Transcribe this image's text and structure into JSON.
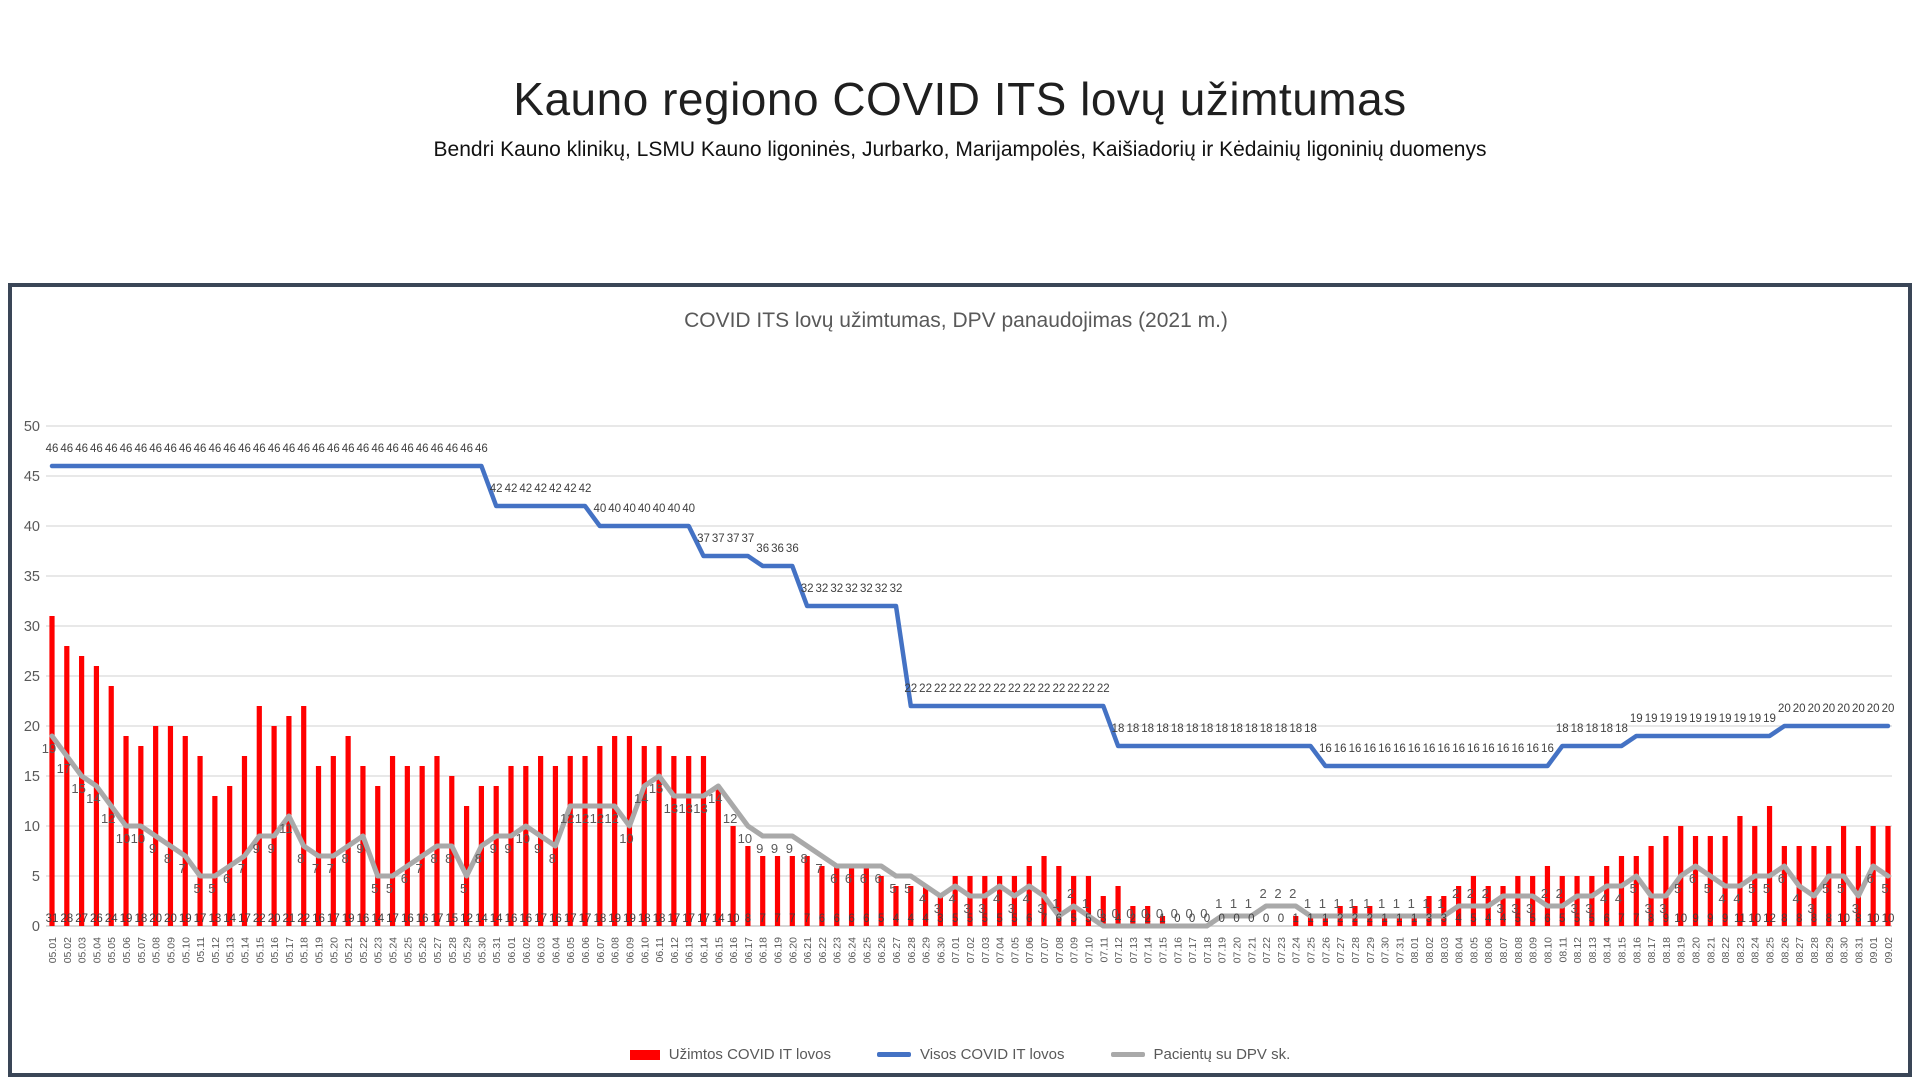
{
  "page": {
    "title": "Kauno regiono COVID ITS lovų užimtumas",
    "subtitle": "Bendri Kauno klinikų, LSMU Kauno ligoninės, Jurbarko, Marijampolės, Kaišiadorių ir Kėdainių ligoninių duomenys"
  },
  "chart_data": {
    "type": "combo",
    "title": "COVID ITS lovų užimtumas, DPV panaudojimas (2021 m.)",
    "xlabel": "",
    "ylabel": "",
    "ylim": [
      0,
      50
    ],
    "yticks": [
      0,
      5,
      10,
      15,
      20,
      25,
      30,
      35,
      40,
      45,
      50
    ],
    "grid": true,
    "data_labels": true,
    "legend_position": "bottom",
    "colors": {
      "bar": "#FF0000",
      "total_line": "#4472C4",
      "dpv_line": "#A9A9A9",
      "gridline": "#D9D9D9",
      "axis_text": "#595959",
      "frame": "#3A4657"
    },
    "categories": [
      "05.01",
      "05.02",
      "05.03",
      "05.04",
      "05.05",
      "05.06",
      "05.07",
      "05.08",
      "05.09",
      "05.10",
      "05.11",
      "05.12",
      "05.13",
      "05.14",
      "05.15",
      "05.16",
      "05.17",
      "05.18",
      "05.19",
      "05.20",
      "05.21",
      "05.22",
      "05.23",
      "05.24",
      "05.25",
      "05.26",
      "05.27",
      "05.28",
      "05.29",
      "05.30",
      "05.31",
      "06.01",
      "06.02",
      "06.03",
      "06.04",
      "06.05",
      "06.06",
      "06.07",
      "06.08",
      "06.09",
      "06.10",
      "06.11",
      "06.12",
      "06.13",
      "06.14",
      "06.15",
      "06.16",
      "06.17",
      "06.18",
      "06.19",
      "06.20",
      "06.21",
      "06.22",
      "06.23",
      "06.24",
      "06.25",
      "06.26",
      "06.27",
      "06.28",
      "06.29",
      "06.30",
      "07.01",
      "07.02",
      "07.03",
      "07.04",
      "07.05",
      "07.06",
      "07.07",
      "07.08",
      "07.09",
      "07.10",
      "07.11",
      "07.12",
      "07.13",
      "07.14",
      "07.15",
      "07.16",
      "07.17",
      "07.18",
      "07.19",
      "07.20",
      "07.21",
      "07.22",
      "07.23",
      "07.24",
      "07.25",
      "07.26",
      "07.27",
      "07.28",
      "07.29",
      "07.30",
      "07.31",
      "08.01",
      "08.02",
      "08.03",
      "08.04",
      "08.05",
      "08.06",
      "08.07",
      "08.08",
      "08.09",
      "08.10",
      "08.11",
      "08.12",
      "08.13",
      "08.14",
      "08.15",
      "08.16",
      "08.17",
      "08.18",
      "08.19",
      "08.20",
      "08.21",
      "08.22",
      "08.23",
      "08.24",
      "08.25",
      "08.26",
      "08.27",
      "08.28",
      "08.29",
      "08.30",
      "08.31",
      "09.01",
      "09.02"
    ],
    "series": [
      {
        "name": "Užimtos COVID IT lovos",
        "type": "bar",
        "color": "#FF0000",
        "values": [
          31,
          28,
          27,
          26,
          24,
          19,
          18,
          20,
          20,
          19,
          17,
          13,
          14,
          17,
          22,
          20,
          21,
          22,
          16,
          17,
          19,
          16,
          14,
          17,
          16,
          16,
          17,
          15,
          12,
          14,
          14,
          16,
          16,
          17,
          16,
          17,
          17,
          18,
          19,
          19,
          18,
          18,
          17,
          17,
          17,
          14,
          10,
          8,
          7,
          7,
          7,
          7,
          6,
          6,
          6,
          6,
          5,
          4,
          4,
          4,
          3,
          5,
          5,
          5,
          5,
          5,
          6,
          7,
          6,
          5,
          5,
          3,
          4,
          2,
          2,
          1,
          0,
          0,
          0,
          0,
          0,
          0,
          0,
          0,
          1,
          1,
          1,
          2,
          2,
          2,
          1,
          1,
          1,
          3,
          3,
          4,
          5,
          4,
          4,
          5,
          5,
          6,
          5,
          5,
          5,
          6,
          7,
          7,
          8,
          9,
          10,
          9,
          9,
          9,
          11,
          10,
          12,
          8,
          8,
          8,
          8,
          10,
          8,
          10,
          10
        ]
      },
      {
        "name": "Visos COVID IT lovos",
        "type": "line",
        "color": "#4472C4",
        "values": [
          46,
          46,
          46,
          46,
          46,
          46,
          46,
          46,
          46,
          46,
          46,
          46,
          46,
          46,
          46,
          46,
          46,
          46,
          46,
          46,
          46,
          46,
          46,
          46,
          46,
          46,
          46,
          46,
          46,
          46,
          42,
          42,
          42,
          42,
          42,
          42,
          42,
          40,
          40,
          40,
          40,
          40,
          40,
          40,
          37,
          37,
          37,
          37,
          36,
          36,
          36,
          32,
          32,
          32,
          32,
          32,
          32,
          32,
          22,
          22,
          22,
          22,
          22,
          22,
          22,
          22,
          22,
          22,
          22,
          22,
          22,
          22,
          18,
          18,
          18,
          18,
          18,
          18,
          18,
          18,
          18,
          18,
          18,
          18,
          18,
          18,
          16,
          16,
          16,
          16,
          16,
          16,
          16,
          16,
          16,
          16,
          16,
          16,
          16,
          16,
          16,
          16,
          18,
          18,
          18,
          18,
          18,
          19,
          19,
          19,
          19,
          19,
          19,
          19,
          19,
          19,
          19,
          20,
          20,
          20,
          20,
          20,
          20,
          20,
          20
        ]
      },
      {
        "name": "Pacientų su DPV sk.",
        "type": "line",
        "color": "#A9A9A9",
        "values": [
          19,
          17,
          15,
          14,
          12,
          10,
          10,
          9,
          8,
          7,
          5,
          5,
          6,
          7,
          9,
          9,
          11,
          8,
          7,
          7,
          8,
          9,
          5,
          5,
          6,
          7,
          8,
          8,
          5,
          8,
          9,
          9,
          10,
          9,
          8,
          12,
          12,
          12,
          12,
          10,
          14,
          15,
          13,
          13,
          13,
          14,
          12,
          10,
          9,
          9,
          9,
          8,
          7,
          6,
          6,
          6,
          6,
          5,
          5,
          4,
          3,
          4,
          3,
          3,
          4,
          3,
          4,
          3,
          1,
          2,
          1,
          0,
          0,
          0,
          0,
          0,
          0,
          0,
          0,
          1,
          1,
          1,
          2,
          2,
          2,
          1,
          1,
          1,
          1,
          1,
          1,
          1,
          1,
          1,
          1,
          2,
          2,
          2,
          3,
          3,
          3,
          2,
          2,
          3,
          3,
          4,
          4,
          5,
          3,
          3,
          5,
          6,
          5,
          4,
          4,
          5,
          5,
          6,
          4,
          3,
          5,
          5,
          3,
          6,
          5
        ]
      }
    ]
  }
}
